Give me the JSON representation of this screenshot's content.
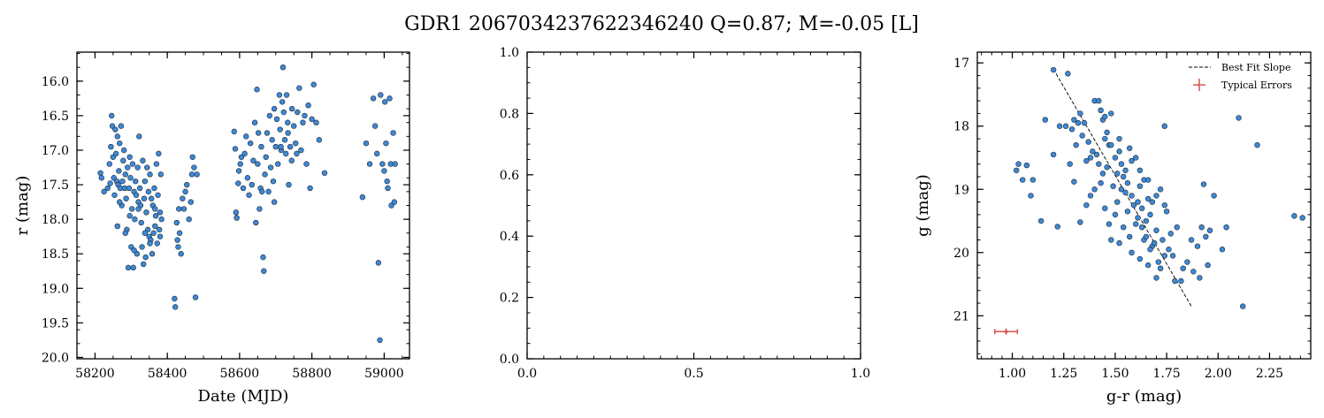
{
  "title": "GDR1 2067034237622346240  Q=0.87; M=-0.05 [L]",
  "colors": {
    "point": "#3f88d4",
    "edge": "#1a2a3a",
    "error": "#d9534f",
    "fit": "#000000"
  },
  "chart_data": [
    {
      "type": "scatter",
      "xlabel": "Date (MJD)",
      "ylabel": "r (mag)",
      "xlim": [
        58150,
        59070
      ],
      "ylim": [
        20.02,
        15.58
      ],
      "y_inverted": true,
      "xticks": [
        "58200",
        "58400",
        "58600",
        "58800",
        "59000"
      ],
      "yticks": [
        "16.0",
        "16.5",
        "17.0",
        "17.5",
        "18.0",
        "18.5",
        "19.0",
        "19.5",
        "20.0"
      ],
      "points": [
        [
          58215,
          17.33
        ],
        [
          58218,
          17.4
        ],
        [
          58225,
          17.6
        ],
        [
          58235,
          17.55
        ],
        [
          58240,
          17.2
        ],
        [
          58242,
          17.48
        ],
        [
          58244,
          16.95
        ],
        [
          58246,
          16.5
        ],
        [
          58248,
          16.65
        ],
        [
          58250,
          17.1
        ],
        [
          58252,
          17.4
        ],
        [
          58254,
          17.65
        ],
        [
          58256,
          16.7
        ],
        [
          58258,
          17.05
        ],
        [
          58260,
          17.45
        ],
        [
          58262,
          16.8
        ],
        [
          58264,
          17.5
        ],
        [
          58266,
          17.3
        ],
        [
          58268,
          16.9
        ],
        [
          58270,
          17.55
        ],
        [
          58272,
          16.65
        ],
        [
          58274,
          17.8
        ],
        [
          58276,
          17.45
        ],
        [
          58278,
          17.15
        ],
        [
          58280,
          17.0
        ],
        [
          58282,
          17.55
        ],
        [
          58284,
          17.35
        ],
        [
          58286,
          17.7
        ],
        [
          58288,
          18.15
        ],
        [
          58290,
          17.25
        ],
        [
          58292,
          18.7
        ],
        [
          58294,
          17.55
        ],
        [
          58296,
          17.1
        ],
        [
          58298,
          17.4
        ],
        [
          58300,
          18.4
        ],
        [
          58302,
          17.85
        ],
        [
          58304,
          17.2
        ],
        [
          58306,
          18.7
        ],
        [
          58308,
          17.6
        ],
        [
          58310,
          18.0
        ],
        [
          58312,
          17.45
        ],
        [
          58314,
          17.65
        ],
        [
          58316,
          18.5
        ],
        [
          58318,
          17.25
        ],
        [
          58320,
          17.75
        ],
        [
          58322,
          16.8
        ],
        [
          58324,
          17.55
        ],
        [
          58326,
          17.8
        ],
        [
          58328,
          18.05
        ],
        [
          58330,
          18.4
        ],
        [
          58332,
          17.15
        ],
        [
          58334,
          18.65
        ],
        [
          58336,
          17.7
        ],
        [
          58338,
          17.45
        ],
        [
          58340,
          18.55
        ],
        [
          58342,
          17.9
        ],
        [
          58344,
          17.25
        ],
        [
          58346,
          18.15
        ],
        [
          58348,
          17.6
        ],
        [
          58350,
          18.25
        ],
        [
          58352,
          17.35
        ],
        [
          58354,
          18.3
        ],
        [
          58356,
          17.7
        ],
        [
          58358,
          18.5
        ],
        [
          58360,
          17.8
        ],
        [
          58362,
          18.2
        ],
        [
          58364,
          17.55
        ],
        [
          58366,
          18.1
        ],
        [
          58368,
          17.95
        ],
        [
          58370,
          17.2
        ],
        [
          58372,
          18.35
        ],
        [
          58374,
          17.65
        ],
        [
          58376,
          17.05
        ],
        [
          58378,
          18.15
        ],
        [
          58380,
          17.9
        ],
        [
          58382,
          17.35
        ],
        [
          58384,
          18.0
        ],
        [
          58262,
          18.1
        ],
        [
          58268,
          17.75
        ],
        [
          58284,
          18.2
        ],
        [
          58296,
          17.95
        ],
        [
          58308,
          18.45
        ],
        [
          58320,
          17.85
        ],
        [
          58338,
          18.2
        ],
        [
          58352,
          18.35
        ],
        [
          58366,
          17.85
        ],
        [
          58380,
          18.25
        ],
        [
          58420,
          19.15
        ],
        [
          58422,
          19.27
        ],
        [
          58426,
          18.05
        ],
        [
          58428,
          18.3
        ],
        [
          58430,
          18.4
        ],
        [
          58432,
          17.85
        ],
        [
          58434,
          18.2
        ],
        [
          58438,
          18.5
        ],
        [
          58442,
          17.7
        ],
        [
          58446,
          17.85
        ],
        [
          58450,
          17.6
        ],
        [
          58454,
          17.5
        ],
        [
          58460,
          18.0
        ],
        [
          58465,
          17.75
        ],
        [
          58468,
          17.35
        ],
        [
          58470,
          17.1
        ],
        [
          58474,
          17.25
        ],
        [
          58478,
          19.13
        ],
        [
          58482,
          17.35
        ],
        [
          58585,
          16.73
        ],
        [
          58588,
          16.98
        ],
        [
          58590,
          17.9
        ],
        [
          58592,
          17.98
        ],
        [
          58596,
          17.48
        ],
        [
          58598,
          17.3
        ],
        [
          58602,
          17.2
        ],
        [
          58605,
          17.1
        ],
        [
          58610,
          17.55
        ],
        [
          58614,
          17.05
        ],
        [
          58618,
          16.8
        ],
        [
          58622,
          17.4
        ],
        [
          58626,
          17.65
        ],
        [
          58630,
          16.9
        ],
        [
          58634,
          17.5
        ],
        [
          58638,
          17.15
        ],
        [
          58642,
          16.6
        ],
        [
          58645,
          18.05
        ],
        [
          58648,
          16.12
        ],
        [
          58650,
          17.2
        ],
        [
          58652,
          16.75
        ],
        [
          58655,
          17.85
        ],
        [
          58658,
          17.55
        ],
        [
          58660,
          16.95
        ],
        [
          58662,
          17.6
        ],
        [
          58665,
          18.55
        ],
        [
          58667,
          18.75
        ],
        [
          58670,
          17.35
        ],
        [
          58673,
          17.1
        ],
        [
          58676,
          16.75
        ],
        [
          58680,
          17.6
        ],
        [
          58683,
          16.5
        ],
        [
          58686,
          17.25
        ],
        [
          58690,
          16.85
        ],
        [
          58693,
          17.45
        ],
        [
          58696,
          16.4
        ],
        [
          58700,
          16.95
        ],
        [
          58703,
          16.55
        ],
        [
          58706,
          17.2
        ],
        [
          58710,
          16.2
        ],
        [
          58712,
          16.7
        ],
        [
          58715,
          17.0
        ],
        [
          58718,
          16.3
        ],
        [
          58720,
          15.8
        ],
        [
          58722,
          16.45
        ],
        [
          58725,
          16.85
        ],
        [
          58728,
          17.05
        ],
        [
          58730,
          16.2
        ],
        [
          58733,
          16.6
        ],
        [
          58736,
          17.5
        ],
        [
          58740,
          16.95
        ],
        [
          58745,
          16.4
        ],
        [
          58750,
          16.65
        ],
        [
          58755,
          16.9
        ],
        [
          58760,
          16.45
        ],
        [
          58765,
          16.1
        ],
        [
          58770,
          17.0
        ],
        [
          58775,
          16.6
        ],
        [
          58780,
          16.5
        ],
        [
          58785,
          17.2
        ],
        [
          58790,
          16.35
        ],
        [
          58795,
          17.55
        ],
        [
          58800,
          16.55
        ],
        [
          58805,
          16.05
        ],
        [
          58812,
          16.6
        ],
        [
          58820,
          16.85
        ],
        [
          58835,
          17.33
        ],
        [
          58696,
          17.75
        ],
        [
          58714,
          16.95
        ],
        [
          58734,
          16.75
        ],
        [
          58744,
          17.15
        ],
        [
          58758,
          17.05
        ],
        [
          58940,
          17.68
        ],
        [
          58950,
          16.9
        ],
        [
          58960,
          17.2
        ],
        [
          58970,
          16.25
        ],
        [
          58975,
          16.65
        ],
        [
          58980,
          17.05
        ],
        [
          58984,
          18.63
        ],
        [
          58988,
          19.75
        ],
        [
          58990,
          16.2
        ],
        [
          58995,
          17.2
        ],
        [
          59000,
          17.3
        ],
        [
          59005,
          16.9
        ],
        [
          59008,
          17.45
        ],
        [
          59010,
          17.55
        ],
        [
          59015,
          16.25
        ],
        [
          59018,
          17.2
        ],
        [
          59020,
          17.8
        ],
        [
          59025,
          16.75
        ],
        [
          59028,
          17.75
        ],
        [
          59030,
          17.2
        ],
        [
          59002,
          16.3
        ]
      ]
    },
    {
      "type": "scatter",
      "xlabel": "",
      "ylabel": "",
      "xlim": [
        0,
        1
      ],
      "ylim": [
        0,
        1
      ],
      "xticks": [
        "0.0",
        "0.5",
        "1.0"
      ],
      "yticks": [
        "0.0",
        "0.2",
        "0.4",
        "0.6",
        "0.8",
        "1.0"
      ],
      "points": []
    },
    {
      "type": "scatter",
      "xlabel": "g-r (mag)",
      "ylabel": "g (mag)",
      "xlim": [
        0.83,
        2.45
      ],
      "ylim": [
        21.68,
        16.83
      ],
      "y_inverted": true,
      "xticks": [
        "1.00",
        "1.25",
        "1.50",
        "1.75",
        "2.00",
        "2.25"
      ],
      "yticks": [
        "17",
        "18",
        "19",
        "20",
        "21"
      ],
      "legend": {
        "position": "top-right",
        "fit_label": "Best Fit Slope",
        "err_label": "Typical Errors"
      },
      "fit_line": [
        [
          1.2,
          17.1
        ],
        [
          1.87,
          20.85
        ]
      ],
      "typical_error": {
        "x": 0.97,
        "y": 21.25,
        "xerr": 0.055,
        "yerr": 0.05
      },
      "points": [
        [
          1.2,
          17.11
        ],
        [
          1.27,
          17.17
        ],
        [
          1.03,
          18.6
        ],
        [
          1.07,
          18.62
        ],
        [
          1.05,
          18.85
        ],
        [
          1.02,
          18.7
        ],
        [
          1.1,
          18.85
        ],
        [
          1.09,
          19.1
        ],
        [
          1.14,
          19.5
        ],
        [
          1.22,
          19.59
        ],
        [
          1.16,
          17.9
        ],
        [
          1.2,
          18.45
        ],
        [
          1.23,
          18.0
        ],
        [
          1.26,
          18.0
        ],
        [
          1.29,
          18.05
        ],
        [
          1.3,
          17.9
        ],
        [
          1.32,
          17.95
        ],
        [
          1.33,
          17.8
        ],
        [
          1.35,
          17.95
        ],
        [
          1.37,
          18.25
        ],
        [
          1.38,
          18.5
        ],
        [
          1.39,
          18.4
        ],
        [
          1.4,
          17.6
        ],
        [
          1.42,
          17.6
        ],
        [
          1.43,
          17.75
        ],
        [
          1.44,
          17.9
        ],
        [
          1.45,
          17.85
        ],
        [
          1.46,
          18.1
        ],
        [
          1.47,
          18.3
        ],
        [
          1.48,
          17.8
        ],
        [
          1.5,
          18.5
        ],
        [
          1.52,
          18.2
        ],
        [
          1.53,
          18.6
        ],
        [
          1.54,
          18.8
        ],
        [
          1.55,
          18.7
        ],
        [
          1.56,
          18.9
        ],
        [
          1.57,
          18.35
        ],
        [
          1.58,
          19.1
        ],
        [
          1.6,
          18.5
        ],
        [
          1.61,
          19.2
        ],
        [
          1.62,
          18.95
        ],
        [
          1.63,
          19.3
        ],
        [
          1.64,
          18.85
        ],
        [
          1.65,
          19.5
        ],
        [
          1.66,
          19.15
        ],
        [
          1.67,
          19.4
        ],
        [
          1.68,
          19.2
        ],
        [
          1.7,
          19.65
        ],
        [
          1.72,
          19.0
        ],
        [
          1.73,
          19.8
        ],
        [
          1.75,
          19.35
        ],
        [
          1.77,
          19.7
        ],
        [
          1.78,
          20.05
        ],
        [
          1.8,
          19.6
        ],
        [
          1.82,
          20.45
        ],
        [
          1.85,
          20.15
        ],
        [
          1.88,
          20.3
        ],
        [
          1.9,
          19.9
        ],
        [
          1.92,
          19.6
        ],
        [
          1.94,
          19.75
        ],
        [
          1.96,
          19.65
        ],
        [
          1.98,
          19.1
        ],
        [
          2.02,
          19.95
        ],
        [
          2.04,
          19.6
        ],
        [
          2.1,
          17.87
        ],
        [
          2.12,
          20.85
        ],
        [
          2.19,
          18.3
        ],
        [
          2.37,
          19.42
        ],
        [
          2.41,
          19.45
        ],
        [
          1.74,
          18.0
        ],
        [
          1.93,
          18.92
        ],
        [
          1.95,
          20.2
        ],
        [
          1.3,
          18.88
        ],
        [
          1.33,
          19.52
        ],
        [
          1.36,
          19.25
        ],
        [
          1.38,
          19.1
        ],
        [
          1.4,
          19.0
        ],
        [
          1.42,
          18.6
        ],
        [
          1.44,
          18.75
        ],
        [
          1.45,
          19.3
        ],
        [
          1.47,
          19.55
        ],
        [
          1.48,
          19.8
        ],
        [
          1.5,
          19.4
        ],
        [
          1.51,
          19.2
        ],
        [
          1.52,
          19.85
        ],
        [
          1.54,
          19.6
        ],
        [
          1.55,
          19.05
        ],
        [
          1.57,
          19.75
        ],
        [
          1.58,
          20.0
        ],
        [
          1.6,
          19.55
        ],
        [
          1.62,
          20.1
        ],
        [
          1.64,
          19.8
        ],
        [
          1.66,
          20.2
        ],
        [
          1.68,
          19.9
        ],
        [
          1.7,
          20.4
        ],
        [
          1.72,
          20.25
        ],
        [
          1.28,
          18.6
        ],
        [
          1.31,
          18.3
        ],
        [
          1.34,
          18.15
        ],
        [
          1.36,
          18.55
        ],
        [
          1.41,
          18.45
        ],
        [
          1.43,
          18.9
        ],
        [
          1.46,
          18.65
        ],
        [
          1.49,
          18.95
        ],
        [
          1.51,
          18.75
        ],
        [
          1.53,
          19.0
        ],
        [
          1.56,
          19.35
        ],
        [
          1.59,
          19.25
        ],
        [
          1.61,
          19.45
        ],
        [
          1.63,
          19.6
        ],
        [
          1.65,
          19.75
        ],
        [
          1.67,
          19.95
        ],
        [
          1.69,
          19.85
        ],
        [
          1.71,
          20.15
        ],
        [
          1.74,
          20.05
        ],
        [
          1.76,
          19.95
        ],
        [
          1.79,
          20.45
        ],
        [
          1.83,
          20.25
        ],
        [
          1.87,
          19.8
        ],
        [
          1.91,
          20.4
        ],
        [
          1.58,
          18.55
        ],
        [
          1.62,
          18.7
        ],
        [
          1.66,
          18.85
        ],
        [
          1.7,
          19.1
        ],
        [
          1.74,
          19.25
        ],
        [
          1.48,
          18.3
        ],
        [
          1.52,
          18.4
        ],
        [
          1.45,
          18.2
        ]
      ]
    }
  ]
}
